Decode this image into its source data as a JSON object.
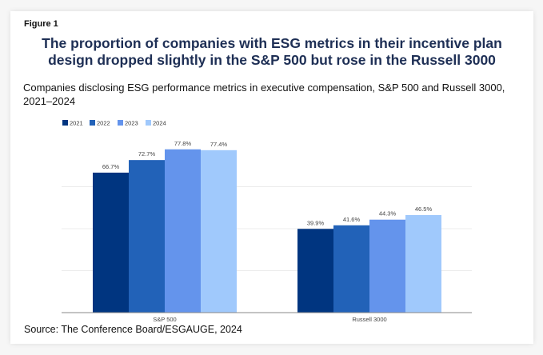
{
  "figure_label": "Figure 1",
  "title_line1": "The proportion of companies with ESG metrics in their incentive plan",
  "title_line2": "design dropped slightly in the S&P 500 but rose in the Russell 3000",
  "subtitle_line1": "Companies disclosing ESG performance metrics in executive compensation, S&P 500 and Russell 3000,",
  "subtitle_line2": "2021–2024",
  "source": "Source: The Conference Board/ESGAUGE, 2024",
  "chart_data": {
    "type": "bar",
    "title": "The proportion of companies with ESG metrics in their incentive plan design dropped slightly in the S&P 500 but rose in the Russell 3000",
    "subtitle": "Companies disclosing ESG performance metrics in executive compensation, S&P 500 and Russell 3000, 2021–2024",
    "categories": [
      "S&P 500",
      "Russell 3000"
    ],
    "series": [
      {
        "name": "2021",
        "color": "#003580",
        "values": [
          66.7,
          39.9
        ],
        "labels": [
          "66.7%",
          "39.9%"
        ]
      },
      {
        "name": "2022",
        "color": "#2262b8",
        "values": [
          72.7,
          41.6
        ],
        "labels": [
          "72.7%",
          "41.6%"
        ]
      },
      {
        "name": "2023",
        "color": "#6494ec",
        "values": [
          77.8,
          44.3
        ],
        "labels": [
          "77.8%",
          "44.3%"
        ]
      },
      {
        "name": "2024",
        "color": "#a0c9fc",
        "values": [
          77.4,
          46.5
        ],
        "labels": [
          "77.4%",
          "46.5%"
        ]
      }
    ],
    "xlabel": "",
    "ylabel": "",
    "ylim": [
      0,
      80
    ],
    "y_gridlines": [
      20,
      40,
      60
    ],
    "y_tick_labels_shown": false,
    "grid": true,
    "legend_position": "top-left",
    "source": "Source: The Conference Board/ESGAUGE, 2024"
  }
}
